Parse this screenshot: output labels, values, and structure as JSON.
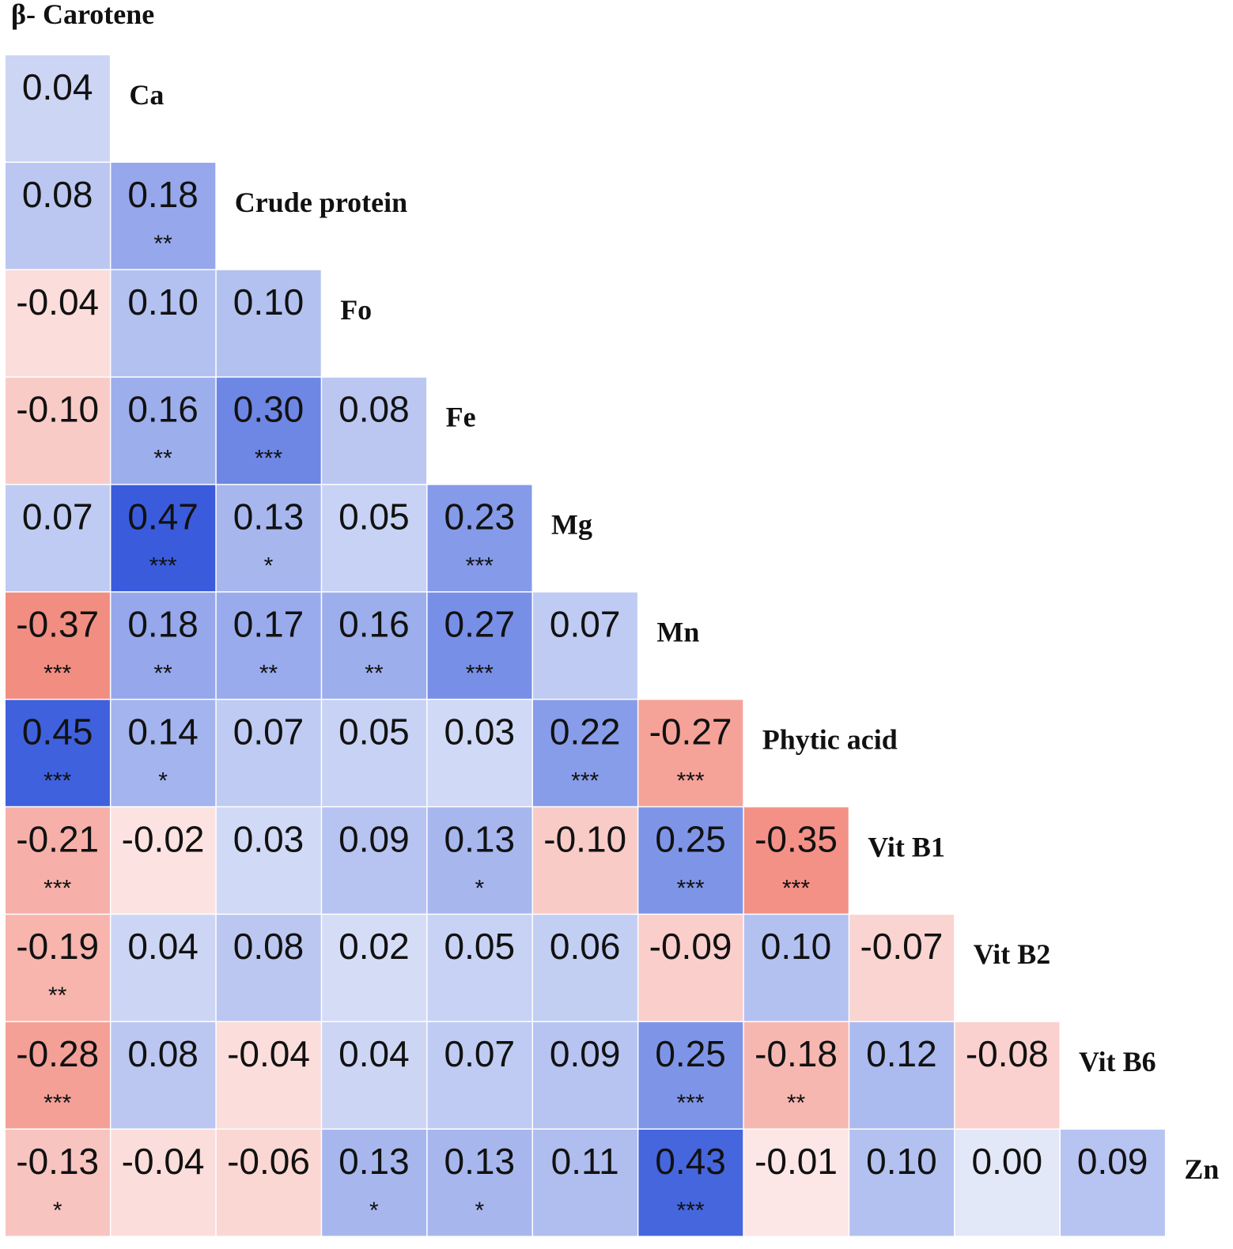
{
  "chart_data": {
    "type": "heatmap",
    "variables": [
      "β- Carotene",
      "Ca",
      "Crude protein",
      "Fo",
      "Fe",
      "Mg",
      "Mn",
      "Phytic acid",
      "Vit B1",
      "Vit B2",
      "Vit B6",
      "Zn"
    ],
    "rows": [
      {
        "label": "Ca",
        "values": [
          "0.04"
        ],
        "sig": [
          ""
        ]
      },
      {
        "label": "Crude protein",
        "values": [
          "0.08",
          "0.18"
        ],
        "sig": [
          "",
          "**"
        ]
      },
      {
        "label": "Fo",
        "values": [
          "-0.04",
          "0.10",
          "0.10"
        ],
        "sig": [
          "",
          "",
          ""
        ]
      },
      {
        "label": "Fe",
        "values": [
          "-0.10",
          "0.16",
          "0.30",
          "0.08"
        ],
        "sig": [
          "",
          "**",
          "***",
          ""
        ]
      },
      {
        "label": "Mg",
        "values": [
          "0.07",
          "0.47",
          "0.13",
          "0.05",
          "0.23"
        ],
        "sig": [
          "",
          "***",
          "*",
          "",
          "***"
        ]
      },
      {
        "label": "Mn",
        "values": [
          "-0.37",
          "0.18",
          "0.17",
          "0.16",
          "0.27",
          "0.07"
        ],
        "sig": [
          "***",
          "**",
          "**",
          "**",
          "***",
          ""
        ]
      },
      {
        "label": "Phytic acid",
        "values": [
          "0.45",
          "0.14",
          "0.07",
          "0.05",
          "0.03",
          "0.22",
          "-0.27"
        ],
        "sig": [
          "***",
          "*",
          "",
          "",
          "",
          "***",
          "***"
        ]
      },
      {
        "label": "Vit B1",
        "values": [
          "-0.21",
          "-0.02",
          "0.03",
          "0.09",
          "0.13",
          "-0.10",
          "0.25",
          "-0.35"
        ],
        "sig": [
          "***",
          "",
          "",
          "",
          "*",
          "",
          "***",
          "***"
        ]
      },
      {
        "label": "Vit B2",
        "values": [
          "-0.19",
          "0.04",
          "0.08",
          "0.02",
          "0.05",
          "0.06",
          "-0.09",
          "0.10",
          "-0.07"
        ],
        "sig": [
          "**",
          "",
          "",
          "",
          "",
          "",
          "",
          "",
          ""
        ]
      },
      {
        "label": "Vit B6",
        "values": [
          "-0.28",
          "0.08",
          "-0.04",
          "0.04",
          "0.07",
          "0.09",
          "0.25",
          "-0.18",
          "0.12",
          "-0.08"
        ],
        "sig": [
          "***",
          "",
          "",
          "",
          "",
          "",
          "***",
          "**",
          "",
          ""
        ]
      },
      {
        "label": "Zn",
        "values": [
          "-0.13",
          "-0.04",
          "-0.06",
          "0.13",
          "0.13",
          "0.11",
          "0.43",
          "-0.01",
          "0.10",
          "0.00",
          "0.09"
        ],
        "sig": [
          "*",
          "",
          "",
          "*",
          "*",
          "",
          "***",
          "",
          "",
          "",
          ""
        ]
      }
    ],
    "colors": {
      "negative": "#f0786a",
      "positive": "#3a5cdc",
      "neutral": "#ffffff"
    },
    "legend": "none",
    "grid": false
  }
}
